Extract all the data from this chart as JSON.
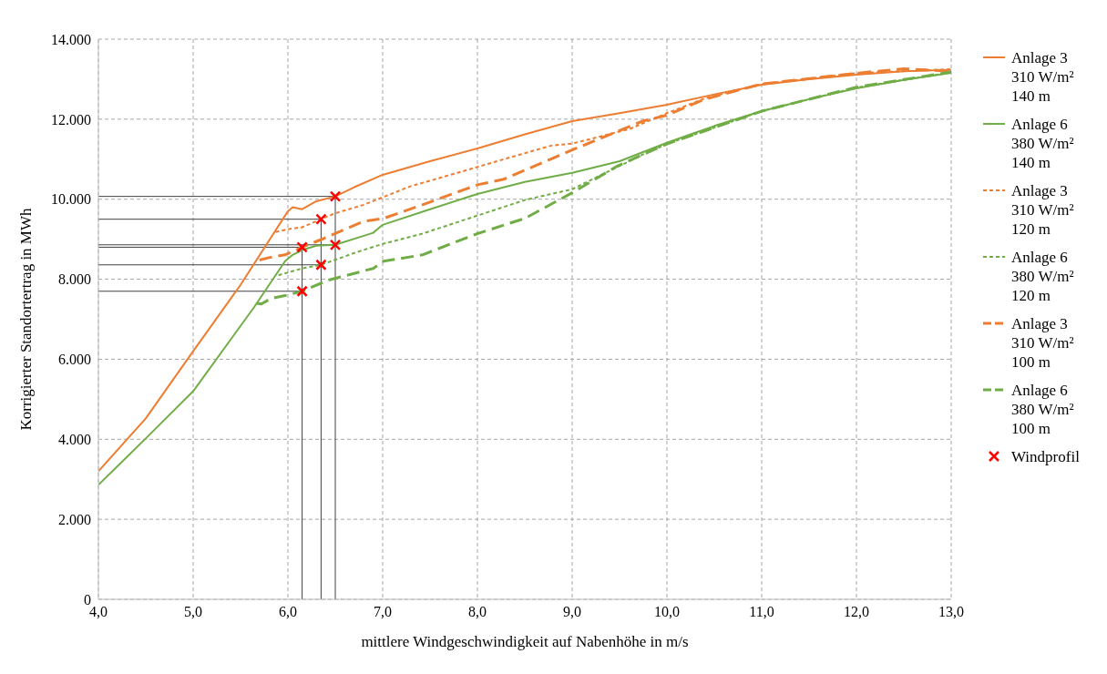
{
  "chart_data": {
    "type": "line",
    "xlabel": "mittlere Windgeschwindigkeit auf Nabenhöhe in m/s",
    "ylabel": "Korrigierter Standortertrag in MWh",
    "xlim": [
      4,
      13
    ],
    "ylim": [
      0,
      14000
    ],
    "xticks": [
      {
        "value": 4,
        "label": "4,0"
      },
      {
        "value": 5,
        "label": "5,0"
      },
      {
        "value": 6,
        "label": "6,0"
      },
      {
        "value": 7,
        "label": "7,0"
      },
      {
        "value": 8,
        "label": "8,0"
      },
      {
        "value": 9,
        "label": "9,0"
      },
      {
        "value": 10,
        "label": "10,0"
      },
      {
        "value": 11,
        "label": "11,0"
      },
      {
        "value": 12,
        "label": "12,0"
      },
      {
        "value": 13,
        "label": "13,0"
      }
    ],
    "yticks": [
      0,
      {
        "value": 2000,
        "label": "2.000"
      },
      {
        "value": 4000,
        "label": "4.000"
      },
      {
        "value": 6000,
        "label": "6.000"
      },
      {
        "value": 8000,
        "label": "8.000"
      },
      {
        "value": 10000,
        "label": "10.000"
      },
      {
        "value": 12000,
        "label": "12.000"
      },
      {
        "value": 14000,
        "label": "14.000"
      }
    ],
    "grid": true,
    "legend": "right",
    "series": [
      {
        "name": "Anlage 3 310 W/m² 140 m",
        "color": "#ed7d31",
        "line_style": "solid",
        "x": [
          4.0,
          4.5,
          5.0,
          5.5,
          6.0,
          6.05,
          6.15,
          6.3,
          6.5,
          6.7,
          7.0,
          7.5,
          8.0,
          8.5,
          9.0,
          9.5,
          10.0,
          10.5,
          11.0,
          11.5,
          12.0,
          12.5,
          13.0
        ],
        "values": [
          3200,
          4520,
          6200,
          7860,
          9700,
          9800,
          9750,
          9950,
          10070,
          10300,
          10610,
          10950,
          11270,
          11620,
          11950,
          12150,
          12360,
          12620,
          12860,
          13000,
          13110,
          13200,
          13230
        ]
      },
      {
        "name": "Anlage 6 380 W/m² 140 m",
        "color": "#70ad47",
        "line_style": "solid",
        "x": [
          4.0,
          4.5,
          5.0,
          5.64,
          5.97,
          6.05,
          6.15,
          6.3,
          6.5,
          6.9,
          7.0,
          7.5,
          8.0,
          8.5,
          9.0,
          9.5,
          10.0,
          10.5,
          11.0,
          11.5,
          12.0,
          12.5,
          13.0
        ],
        "values": [
          2860,
          4020,
          5200,
          7290,
          8450,
          8610,
          8730,
          8840,
          8860,
          9160,
          9360,
          9750,
          10130,
          10430,
          10660,
          10950,
          11410,
          11830,
          12200,
          12500,
          12770,
          12980,
          13160
        ]
      },
      {
        "name": "Anlage 3 310 W/m² 120 m",
        "color": "#ed7d31",
        "line_style": "dotted",
        "x": [
          5.87,
          6.0,
          6.15,
          6.35,
          6.5,
          6.8,
          7.29,
          7.79,
          8.28,
          8.78,
          9.0,
          9.6,
          10.0,
          10.4,
          11.0,
          12.0,
          13.0
        ],
        "values": [
          9180,
          9250,
          9300,
          9500,
          9650,
          9860,
          10320,
          10660,
          11000,
          11340,
          11390,
          11750,
          12150,
          12520,
          12880,
          13150,
          13250
        ]
      },
      {
        "name": "Anlage 6 380 W/m² 120 m",
        "color": "#70ad47",
        "line_style": "dotted",
        "x": [
          5.9,
          6.15,
          6.35,
          6.73,
          7.01,
          7.42,
          8.0,
          8.5,
          9.0,
          9.74,
          10.0,
          11.0,
          12.0,
          13.0
        ],
        "values": [
          8100,
          8270,
          8360,
          8680,
          8890,
          9140,
          9590,
          9980,
          10250,
          11110,
          11380,
          12200,
          12790,
          13170
        ]
      },
      {
        "name": "Anlage 3 310 W/m² 100 m",
        "color": "#ed7d31",
        "line_style": "dashed",
        "x": [
          5.7,
          5.82,
          5.97,
          6.15,
          6.38,
          6.8,
          7.01,
          7.42,
          8.0,
          8.28,
          9.0,
          9.74,
          10.0,
          10.4,
          11.0,
          12.0,
          12.5,
          13.0
        ],
        "values": [
          8480,
          8550,
          8610,
          8800,
          9020,
          9450,
          9520,
          9860,
          10360,
          10500,
          11230,
          11950,
          12100,
          12500,
          12880,
          13150,
          13260,
          13200
        ]
      },
      {
        "name": "Anlage 6 380 W/m² 100 m",
        "color": "#70ad47",
        "line_style": "dashed",
        "x": [
          5.67,
          5.72,
          5.82,
          5.97,
          6.15,
          6.43,
          6.9,
          7.01,
          7.42,
          8.0,
          8.5,
          9.0,
          9.47,
          9.74,
          10.0,
          11.0,
          12.0,
          13.0
        ],
        "values": [
          7400,
          7380,
          7520,
          7590,
          7700,
          7980,
          8270,
          8450,
          8610,
          9140,
          9520,
          10160,
          10820,
          11110,
          11380,
          12200,
          12800,
          13180
        ]
      },
      {
        "name": "Windprofil",
        "type": "scatter",
        "marker": "cross",
        "color": "#ff0000",
        "x": [
          6.15,
          6.35,
          6.5,
          6.15,
          6.35,
          6.5
        ],
        "values": [
          8800,
          9500,
          10070,
          7700,
          8360,
          8860
        ]
      }
    ],
    "ref_lines": [
      {
        "axis": "y",
        "value": 8800,
        "color": "#404040"
      },
      {
        "axis": "y",
        "value": 9500,
        "color": "#404040"
      },
      {
        "axis": "y",
        "value": 10070,
        "color": "#404040"
      },
      {
        "axis": "y",
        "value": 7700,
        "color": "#404040"
      },
      {
        "axis": "y",
        "value": 8360,
        "color": "#404040"
      },
      {
        "axis": "y",
        "value": 8860,
        "color": "#404040"
      },
      {
        "axis": "x",
        "value": 6.15,
        "color": "#404040"
      },
      {
        "axis": "x",
        "value": 6.35,
        "color": "#404040"
      },
      {
        "axis": "x",
        "value": 6.5,
        "color": "#404040"
      }
    ]
  }
}
